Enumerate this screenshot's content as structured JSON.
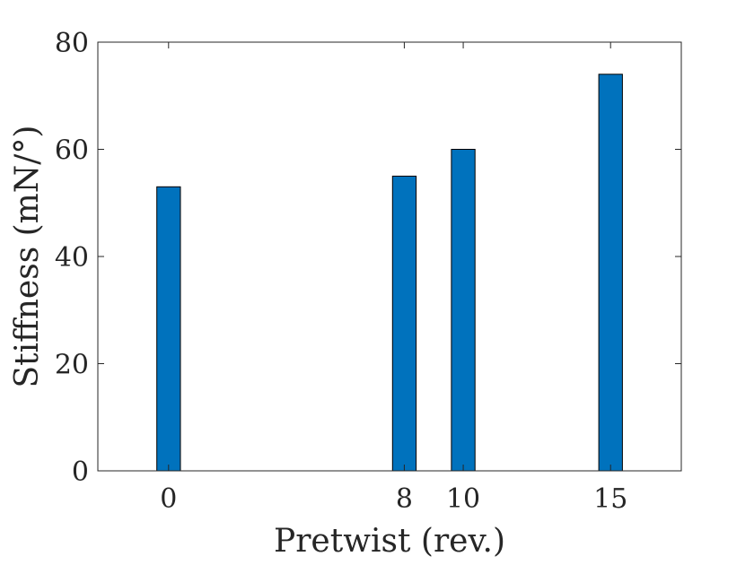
{
  "chart_data": {
    "type": "bar",
    "title": "",
    "xlabel": "Pretwist (rev.)",
    "ylabel": "Stiffness (mN/°)",
    "x": [
      0,
      8,
      10,
      15
    ],
    "x_tick_labels": [
      "0",
      "8",
      "10",
      "15"
    ],
    "values": [
      53,
      55,
      60,
      74
    ],
    "xlim": [
      -2.4,
      17.4
    ],
    "ylim": [
      0,
      80
    ],
    "y_ticks": [
      0,
      20,
      40,
      60,
      80
    ],
    "y_tick_labels": [
      "0",
      "20",
      "40",
      "60",
      "80"
    ],
    "grid": false,
    "bar_color": "#0072BD"
  }
}
